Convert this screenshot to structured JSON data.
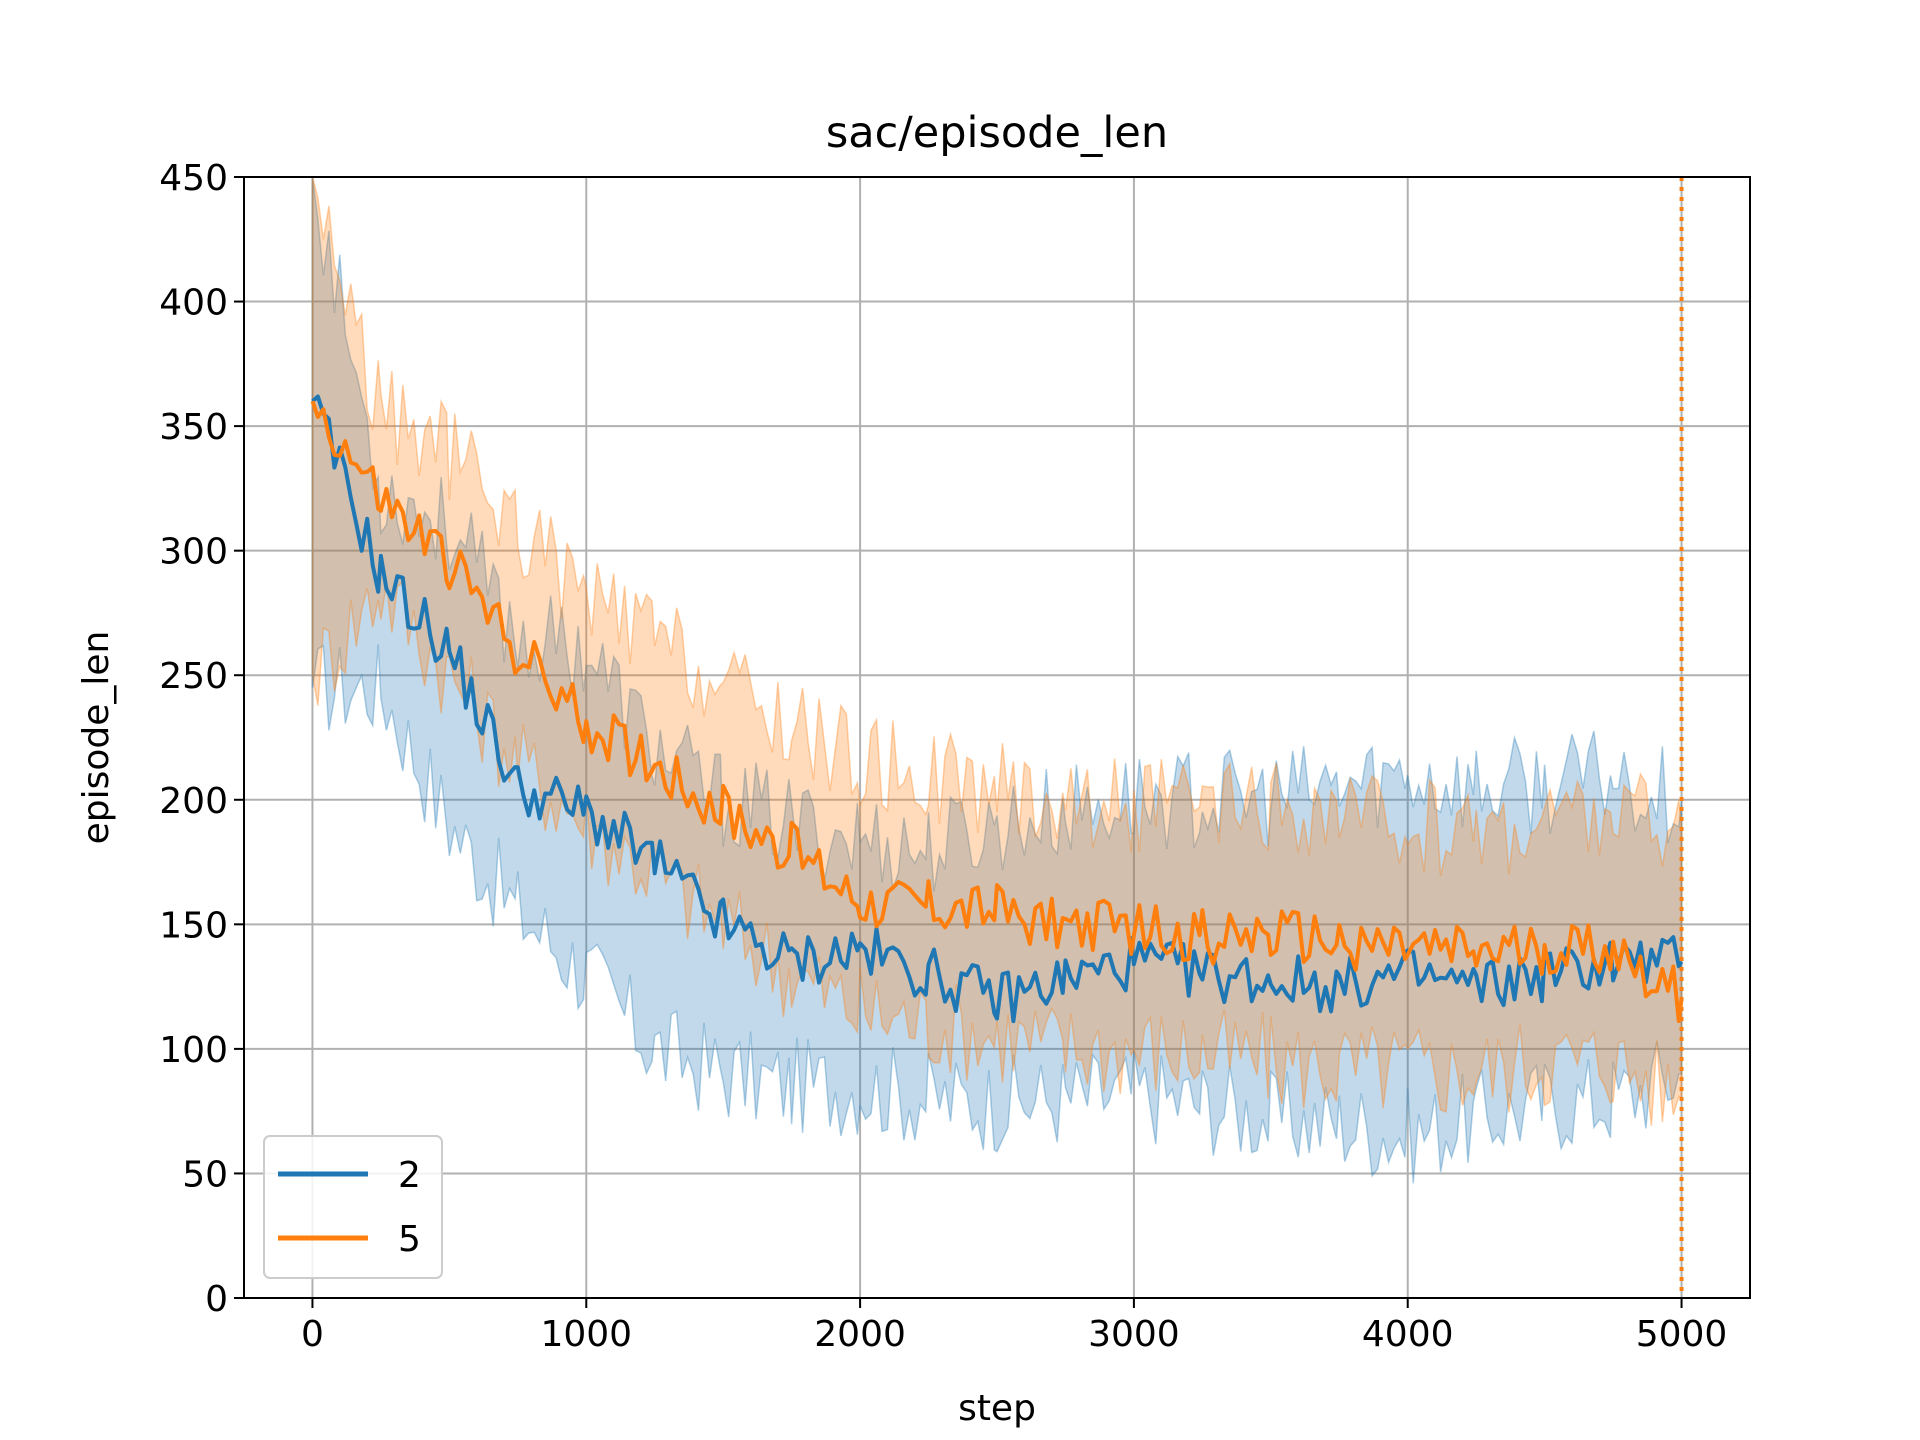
{
  "chart_data": {
    "type": "line",
    "title": "sac/episode_len",
    "xlabel": "step",
    "ylabel": "episode_len",
    "xlim": [
      -250,
      5250
    ],
    "ylim": [
      0,
      450
    ],
    "xticks": [
      0,
      1000,
      2000,
      3000,
      4000,
      5000
    ],
    "xtick_labels": [
      "0",
      "1000",
      "2000",
      "3000",
      "4000",
      "5000"
    ],
    "yticks": [
      0,
      50,
      100,
      150,
      200,
      250,
      300,
      350,
      400,
      450
    ],
    "ytick_labels": [
      "0",
      "50",
      "100",
      "150",
      "200",
      "250",
      "300",
      "350",
      "400",
      "450"
    ],
    "grid": true,
    "legend_position": "lower-left",
    "vertical_lines": [
      {
        "x": 5000,
        "style": "dotted",
        "color": "#ff7f0e"
      }
    ],
    "series": [
      {
        "name": "2",
        "color": "#1f77b4",
        "x": [
          0,
          250,
          500,
          750,
          1000,
          1250,
          1500,
          1750,
          2000,
          2250,
          2500,
          2750,
          3000,
          3250,
          3500,
          3750,
          4000,
          4250,
          4500,
          4750,
          5000
        ],
        "y": [
          360,
          290,
          260,
          205,
          195,
          175,
          150,
          135,
          140,
          130,
          120,
          128,
          135,
          130,
          128,
          125,
          130,
          125,
          130,
          135,
          135
        ],
        "lower": [
          245,
          245,
          190,
          155,
          130,
          100,
          90,
          85,
          85,
          80,
          78,
          80,
          82,
          78,
          72,
          70,
          65,
          72,
          78,
          80,
          90
        ],
        "upper": [
          450,
          325,
          310,
          265,
          260,
          220,
          200,
          190,
          185,
          180,
          190,
          195,
          200,
          200,
          200,
          205,
          210,
          205,
          205,
          210,
          200
        ]
      },
      {
        "name": "5",
        "color": "#ff7f0e",
        "x": [
          0,
          250,
          500,
          750,
          1000,
          1250,
          1500,
          1750,
          2000,
          2250,
          2500,
          2750,
          3000,
          3250,
          3500,
          3750,
          4000,
          4250,
          4500,
          4750,
          5000
        ],
        "y": [
          360,
          320,
          295,
          260,
          230,
          215,
          195,
          180,
          160,
          158,
          155,
          150,
          148,
          145,
          145,
          143,
          140,
          138,
          140,
          140,
          120
        ],
        "lower": [
          250,
          285,
          250,
          215,
          190,
          170,
          150,
          130,
          115,
          110,
          105,
          100,
          100,
          98,
          95,
          92,
          92,
          90,
          95,
          95,
          80
        ],
        "upper": [
          450,
          355,
          340,
          310,
          280,
          265,
          245,
          230,
          215,
          210,
          205,
          200,
          198,
          195,
          195,
          192,
          190,
          188,
          192,
          195,
          190
        ]
      }
    ]
  }
}
